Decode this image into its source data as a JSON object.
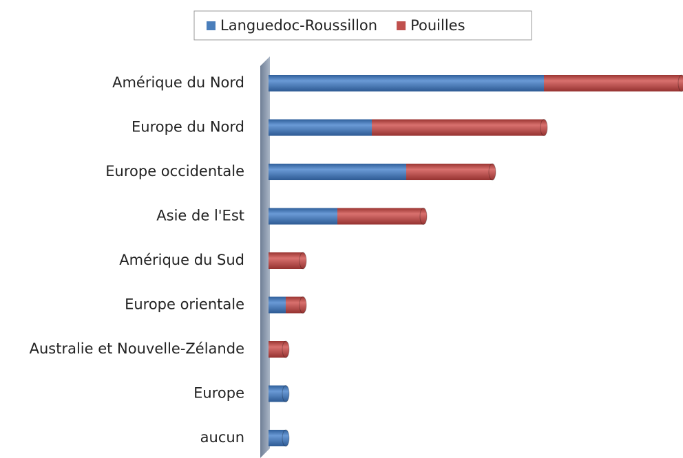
{
  "chart_data": {
    "type": "stacked_barh",
    "categories": [
      "Amérique du Nord",
      "Europe du Nord",
      "Europe occidentale",
      "Asie de l'Est",
      "Amérique du Sud",
      "Europe orientale",
      "Australie et Nouvelle-Zélande",
      "Europe",
      "aucun"
    ],
    "series": [
      {
        "name": "Languedoc-Roussillon",
        "color": "#4a7ebb",
        "values": [
          16,
          6,
          8,
          4,
          0,
          1,
          0,
          1,
          1
        ]
      },
      {
        "name": "Pouilles",
        "color": "#c0504d",
        "values": [
          8,
          10,
          5,
          5,
          2,
          1,
          1,
          0,
          0
        ]
      }
    ],
    "xlim": [
      0,
      24
    ],
    "legend": "top"
  }
}
